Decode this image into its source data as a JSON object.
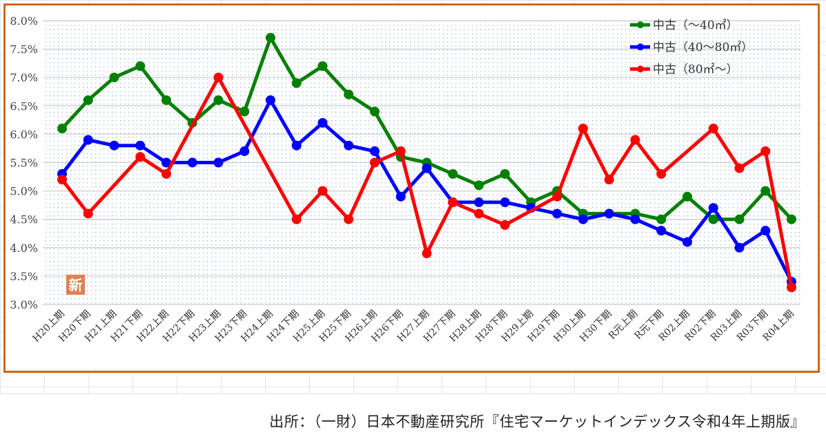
{
  "chart_data": {
    "type": "line",
    "title": "",
    "xlabel": "",
    "ylabel": "",
    "ylim": [
      3.0,
      8.0
    ],
    "yticks": [
      "3.0%",
      "3.5%",
      "4.0%",
      "4.5%",
      "5.0%",
      "5.5%",
      "6.0%",
      "6.5%",
      "7.0%",
      "7.5%",
      "8.0%"
    ],
    "grid": true,
    "legend_position": "top-right",
    "categories": [
      "H20上期",
      "H20下期",
      "H21上期",
      "H21下期",
      "H22上期",
      "H22下期",
      "H23上期",
      "H23下期",
      "H24上期",
      "H24下期",
      "H25上期",
      "H25下期",
      "H26上期",
      "H26下期",
      "H27上期",
      "H27下期",
      "H28上期",
      "H28下期",
      "H29上期",
      "H29下期",
      "H30上期",
      "H30下期",
      "R元上期",
      "R元下期",
      "R02上期",
      "R02下期",
      "R03上期",
      "R03下期",
      "R04上期"
    ],
    "series": [
      {
        "name": "中古（～40㎡）",
        "color": "#008000",
        "values": [
          6.1,
          6.6,
          7.0,
          7.2,
          6.6,
          6.2,
          6.6,
          6.4,
          7.7,
          6.9,
          7.2,
          6.7,
          6.4,
          5.6,
          5.5,
          5.3,
          5.1,
          5.3,
          4.8,
          5.0,
          4.6,
          4.6,
          4.6,
          4.5,
          4.9,
          4.5,
          4.5,
          5.0,
          4.5
        ]
      },
      {
        "name": "中古（40～80㎡）",
        "color": "#0000ff",
        "values": [
          5.3,
          5.9,
          5.8,
          5.8,
          5.5,
          5.5,
          5.5,
          5.7,
          6.6,
          5.8,
          6.2,
          5.8,
          5.7,
          4.9,
          5.4,
          4.8,
          4.8,
          4.8,
          4.7,
          4.6,
          4.5,
          4.6,
          4.5,
          4.3,
          4.1,
          4.7,
          4.0,
          4.3,
          3.4
        ]
      },
      {
        "name": "中古（80㎡～）",
        "color": "#ff0000",
        "values": [
          5.2,
          4.6,
          null,
          5.6,
          5.3,
          null,
          7.0,
          null,
          null,
          4.5,
          5.0,
          4.5,
          5.5,
          5.7,
          3.9,
          4.8,
          4.6,
          4.4,
          null,
          4.9,
          6.1,
          5.2,
          5.9,
          5.3,
          null,
          6.1,
          5.4,
          5.7,
          3.3
        ]
      }
    ],
    "annotation": "新"
  },
  "source": "出所：（一財）日本不動産研究所『住宅マーケットインデックス令和4年上期版』"
}
